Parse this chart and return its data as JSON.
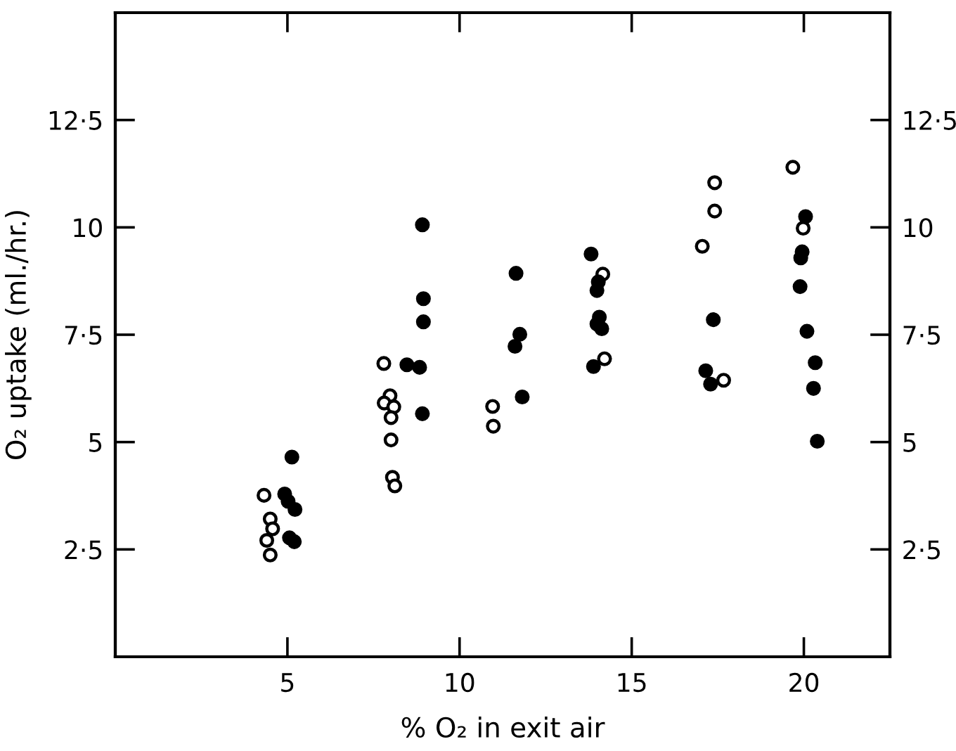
{
  "chart_data": {
    "type": "scatter",
    "xlabel": "% O₂ in exit air",
    "ylabel": "O₂ uptake (ml./hr.)",
    "xlim": [
      0,
      22.5
    ],
    "ylim": [
      0,
      15
    ],
    "xticks": [
      5,
      10,
      15,
      20
    ],
    "yticks": [
      {
        "value": 2.5,
        "label": "2·5"
      },
      {
        "value": 5,
        "label": "5"
      },
      {
        "value": 7.5,
        "label": "7·5"
      },
      {
        "value": 10,
        "label": "10"
      },
      {
        "value": 12.5,
        "label": "12·5"
      }
    ],
    "y2lim": [
      0,
      15
    ],
    "y2ticks": [
      {
        "value": 2.5,
        "label": "2·5"
      },
      {
        "value": 5,
        "label": "5"
      },
      {
        "value": 7.5,
        "label": "7·5"
      },
      {
        "value": 10,
        "label": "10"
      },
      {
        "value": 12.5,
        "label": "12·5"
      }
    ],
    "marker": "circle",
    "grid": false,
    "legend": false,
    "series": [
      {
        "color": "#ffffff",
        "x": [
          4.32,
          4.5,
          4.57,
          4.4,
          4.5,
          7.8,
          7.98,
          7.81,
          8.09,
          8.01,
          8.01,
          8.05,
          8.12,
          10.96,
          10.98,
          14.16,
          14.21,
          17.41,
          17.41,
          17.05,
          17.67,
          19.68,
          19.98
        ],
        "values": [
          3.76,
          3.21,
          2.98,
          2.71,
          2.37,
          6.83,
          6.08,
          5.91,
          5.82,
          5.57,
          5.05,
          4.18,
          3.98,
          5.83,
          5.37,
          8.91,
          6.94,
          11.04,
          10.38,
          9.56,
          6.44,
          11.4,
          9.98
        ]
      },
      {
        "color": "#000000",
        "x": [
          5.13,
          4.92,
          5.02,
          5.22,
          5.06,
          5.2,
          8.92,
          8.95,
          8.95,
          8.47,
          8.84,
          8.92,
          11.64,
          11.75,
          11.61,
          11.82,
          13.82,
          14.03,
          13.99,
          14.06,
          13.99,
          14.13,
          13.89,
          17.37,
          17.15,
          17.29,
          20.05,
          19.95,
          19.91,
          19.89,
          20.09,
          20.33,
          20.28,
          20.39
        ],
        "values": [
          4.65,
          3.79,
          3.62,
          3.43,
          2.77,
          2.68,
          10.06,
          8.34,
          7.8,
          6.8,
          6.74,
          5.66,
          8.93,
          7.51,
          7.23,
          6.05,
          9.38,
          8.73,
          8.53,
          7.91,
          7.75,
          7.64,
          6.76,
          7.85,
          6.66,
          6.35,
          10.25,
          9.43,
          9.29,
          8.62,
          7.58,
          6.85,
          6.25,
          5.02
        ]
      }
    ]
  }
}
